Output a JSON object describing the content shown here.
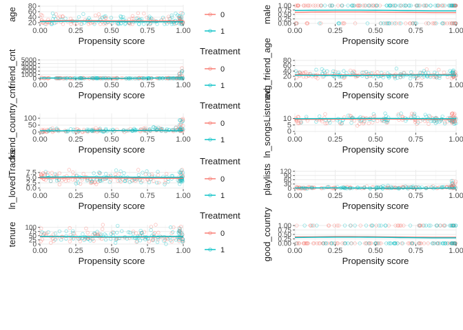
{
  "figure": {
    "legend_title": "Treatment",
    "legend_labels": [
      "0",
      "1"
    ],
    "colors": {
      "control": "#F8766D",
      "treated": "#00BFC4",
      "grid": "#ebebeb",
      "tick_text": "#4d4d4d"
    }
  },
  "chart_data": [
    {
      "id": "age",
      "type": "scatter",
      "ylabel": "age",
      "xlabel": "Propensity score",
      "xlim": [
        0,
        1
      ],
      "ylim": [
        15,
        85
      ],
      "xticks": [
        "0.00",
        "0.25",
        "0.50",
        "0.75",
        "1.00"
      ],
      "yticks": [
        "20",
        "40",
        "60",
        "80"
      ],
      "y0": 25,
      "spread": 14,
      "smooth0": 27,
      "smooth1": 24,
      "skew": 0,
      "tail": 0
    },
    {
      "id": "male",
      "type": "scatter",
      "ylabel": "male",
      "xlabel": "Propensity score",
      "xlim": [
        0,
        1
      ],
      "ylim": [
        -0.04,
        1.04
      ],
      "xticks": [
        "0.00",
        "0.25",
        "0.50",
        "0.75",
        "1.00"
      ],
      "yticks": [
        "0.00",
        "0.25",
        "0.50",
        "0.75",
        "1.00"
      ],
      "binary": true,
      "smooth0": 0.62,
      "smooth1": 0.72
    },
    {
      "id": "friend_cnt",
      "type": "scatter",
      "ylabel": "friend_cnt",
      "xlabel": "Propensity score",
      "xlim": [
        0,
        1
      ],
      "ylim": [
        0,
        5200
      ],
      "xticks": [
        "0.00",
        "0.25",
        "0.50",
        "0.75",
        "1.00"
      ],
      "yticks": [
        "0",
        "1000",
        "2000",
        "3000",
        "4000",
        "5000"
      ],
      "y0": 30,
      "spread": 60,
      "smooth0": 40,
      "smooth1": 60,
      "skew": 0,
      "tail": 2800
    },
    {
      "id": "avg_friend_age",
      "type": "scatter",
      "ylabel": "avg_friend_age",
      "xlabel": "Propensity score",
      "xlim": [
        0,
        1
      ],
      "ylim": [
        12,
        85
      ],
      "xticks": [
        "0.00",
        "0.25",
        "0.50",
        "0.75",
        "1.00"
      ],
      "yticks": [
        "20",
        "40",
        "60",
        "80"
      ],
      "y0": 24,
      "spread": 10,
      "smooth0": 26,
      "smooth1": 24,
      "skew": 0,
      "tail": 0
    },
    {
      "id": "friend_country_cnt",
      "type": "scatter",
      "ylabel": "friend_country_cnt",
      "xlabel": "Propensity score",
      "xlim": [
        0,
        1
      ],
      "ylim": [
        -5,
        135
      ],
      "xticks": [
        "0.00",
        "0.25",
        "0.50",
        "0.75",
        "1.00"
      ],
      "yticks": [
        "0",
        "50",
        "100"
      ],
      "y0": 6,
      "spread": 9,
      "smooth0": 9,
      "smooth1": 10,
      "skew": 10,
      "tail": 95
    },
    {
      "id": "ln_songsListened",
      "type": "scatter",
      "ylabel": "ln_songsListened",
      "xlabel": "Propensity score",
      "xlim": [
        0,
        1
      ],
      "ylim": [
        -1,
        14
      ],
      "xticks": [
        "0.00",
        "0.25",
        "0.50",
        "0.75",
        "1.00"
      ],
      "yticks": [
        "0",
        "5",
        "10"
      ],
      "y0": 9,
      "spread": 2.5,
      "smooth0": 9.5,
      "smooth1": 10,
      "skew": 0,
      "tail": 0
    },
    {
      "id": "ln_lovedTracks",
      "type": "scatter",
      "ylabel": "ln_lovedTracks",
      "xlabel": "Propensity score",
      "xlim": [
        0,
        1
      ],
      "ylim": [
        -0.5,
        8.8
      ],
      "xticks": [
        "0.00",
        "0.25",
        "0.50",
        "0.75",
        "1.00"
      ],
      "yticks": [
        "0.0",
        "2.5",
        "5.0",
        "7.5"
      ],
      "y0": 4.5,
      "spread": 2.2,
      "smooth0": 4.8,
      "smooth1": 5.3,
      "skew": 0,
      "tail": 0
    },
    {
      "id": "playlists",
      "type": "scatter",
      "ylabel": "playlists",
      "xlabel": "Propensity score",
      "xlim": [
        0,
        1
      ],
      "ylim": [
        -5,
        130
      ],
      "xticks": [
        "0.00",
        "0.25",
        "0.50",
        "0.75",
        "1.00"
      ],
      "yticks": [
        "0",
        "30",
        "60",
        "90",
        "120"
      ],
      "y0": 2,
      "spread": 5,
      "smooth0": 1,
      "smooth1": 2,
      "skew": 4,
      "tail": 60
    },
    {
      "id": "tenure",
      "type": "scatter",
      "ylabel": "tenure",
      "xlabel": "Propensity score",
      "xlim": [
        0,
        1
      ],
      "ylim": [
        0,
        115
      ],
      "xticks": [
        "0.00",
        "0.25",
        "0.50",
        "0.75",
        "1.00"
      ],
      "yticks": [
        "0",
        "25",
        "50",
        "75",
        "100"
      ],
      "y0": 45,
      "spread": 28,
      "smooth0": 42,
      "smooth1": 44,
      "skew": 0,
      "tail": 0
    },
    {
      "id": "good_country",
      "type": "scatter",
      "ylabel": "good_country",
      "xlabel": "Propensity score",
      "xlim": [
        0,
        1
      ],
      "ylim": [
        -0.04,
        1.04
      ],
      "xticks": [
        "0.00",
        "0.25",
        "0.50",
        "0.75",
        "1.00"
      ],
      "yticks": [
        "0.00",
        "0.25",
        "0.50",
        "0.75",
        "1.00"
      ],
      "binary": true,
      "smooth0": 0.36,
      "smooth1": 0.33
    }
  ]
}
